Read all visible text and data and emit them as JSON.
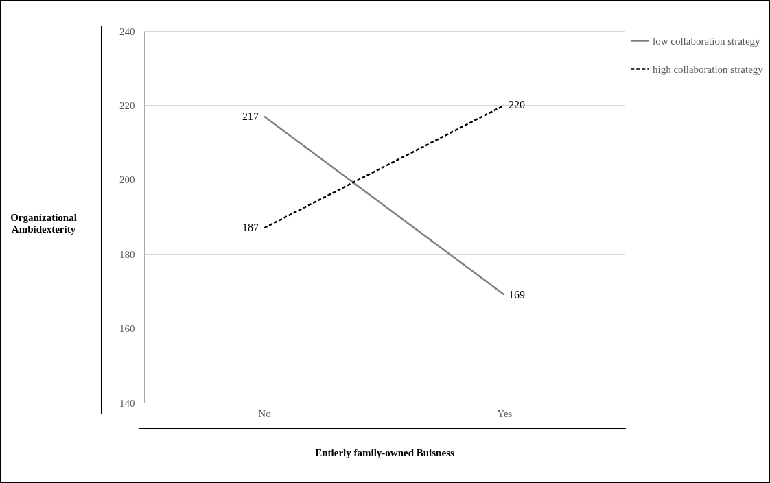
{
  "chart_data": {
    "type": "line",
    "xlabel": "Entierly family-owned Buisness",
    "ylabel": "Organizational Ambidexterity",
    "categories": [
      "No",
      "Yes"
    ],
    "series": [
      {
        "name": "low collaboration strategy",
        "color": "#808080",
        "line_style": "solid",
        "values": [
          217,
          169
        ]
      },
      {
        "name": "high collaboration strategy",
        "color": "#000000",
        "line_style": "dashed",
        "values": [
          187,
          220
        ]
      }
    ],
    "ylim": [
      140,
      240
    ],
    "yticks": [
      140,
      160,
      180,
      200,
      220,
      240
    ],
    "grid": "y",
    "legend": "top right",
    "data_labels": true,
    "marker": "none"
  }
}
